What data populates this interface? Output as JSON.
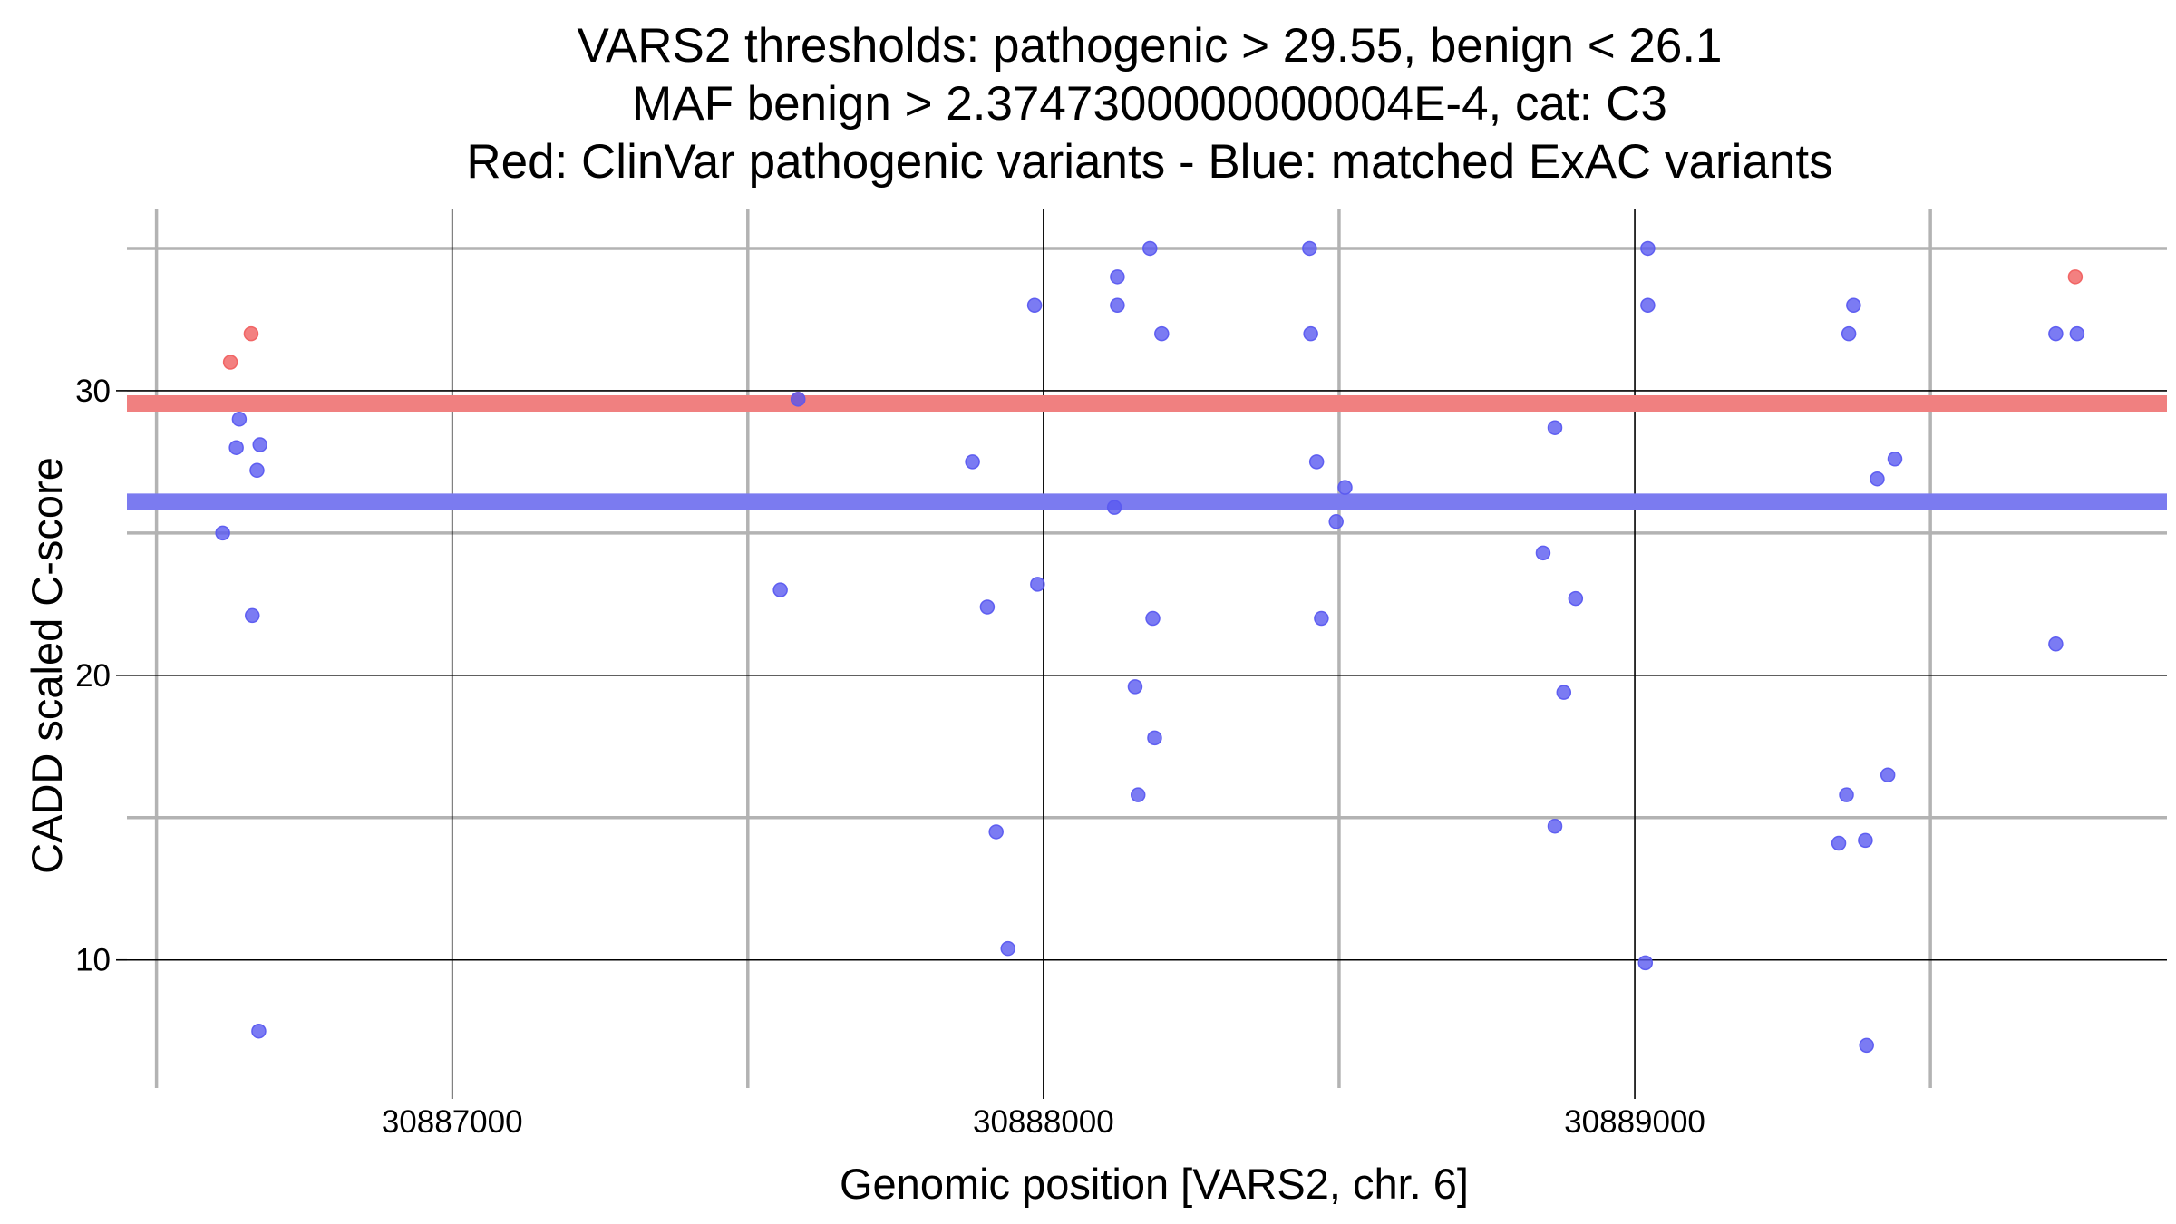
{
  "chart_data": {
    "type": "scatter",
    "title_lines": [
      "VARS2 thresholds: pathogenic > 29.55, benign < 26.1",
      "MAF benign > 2.3747300000000004E-4, cat: C3",
      "Red: ClinVar pathogenic variants - Blue: matched ExAC variants"
    ],
    "xlabel": "Genomic position [VARS2, chr. 6]",
    "ylabel": "CADD scaled C-score",
    "xlim": [
      30886450,
      30889900
    ],
    "ylim": [
      5.5,
      36.4
    ],
    "x_major_ticks": [
      30887000,
      30888000,
      30889000
    ],
    "x_tick_labels": [
      "30887000",
      "30888000",
      "30889000"
    ],
    "x_minor_ticks": [
      30886500,
      30887500,
      30888500,
      30889500
    ],
    "y_major_ticks": [
      10,
      20,
      30
    ],
    "y_tick_labels": [
      "10",
      "20",
      "30"
    ],
    "y_minor_ticks": [
      15,
      25,
      35
    ],
    "thresholds": [
      {
        "name": "pathogenic",
        "value": 29.55,
        "color": "#f08080"
      },
      {
        "name": "benign",
        "value": 26.1,
        "color": "#7b7bf0"
      }
    ],
    "colors": {
      "pathogenic_point": "#f06060",
      "benign_point": "#5a5af0",
      "major_grid": "#000000",
      "minor_grid": "#b3b3b3"
    },
    "series": [
      {
        "name": "ClinVar pathogenic",
        "color": "#f06060",
        "points": [
          [
            30886625,
            31.0
          ],
          [
            30886660,
            32.0
          ],
          [
            30887585,
            29.7
          ],
          [
            30889745,
            34.0
          ]
        ]
      },
      {
        "name": "matched ExAC",
        "color": "#5a5af0",
        "points": [
          [
            30886612,
            25.0
          ],
          [
            30886640,
            29.0
          ],
          [
            30886635,
            28.0
          ],
          [
            30886675,
            28.1
          ],
          [
            30886670,
            27.2
          ],
          [
            30886662,
            22.1
          ],
          [
            30886673,
            7.5
          ],
          [
            30887555,
            23.0
          ],
          [
            30887585,
            29.7
          ],
          [
            30887880,
            27.5
          ],
          [
            30887905,
            22.4
          ],
          [
            30887920,
            14.5
          ],
          [
            30887940,
            10.4
          ],
          [
            30887985,
            33.0
          ],
          [
            30887990,
            23.2
          ],
          [
            30888120,
            25.9
          ],
          [
            30888125,
            34.0
          ],
          [
            30888125,
            33.0
          ],
          [
            30888155,
            19.6
          ],
          [
            30888160,
            15.8
          ],
          [
            30888180,
            35.0
          ],
          [
            30888185,
            22.0
          ],
          [
            30888188,
            17.8
          ],
          [
            30888200,
            32.0
          ],
          [
            30888450,
            35.0
          ],
          [
            30888452,
            32.0
          ],
          [
            30888462,
            27.5
          ],
          [
            30888470,
            22.0
          ],
          [
            30888495,
            25.4
          ],
          [
            30888510,
            26.6
          ],
          [
            30888845,
            24.3
          ],
          [
            30888865,
            28.7
          ],
          [
            30888865,
            14.7
          ],
          [
            30888880,
            19.4
          ],
          [
            30888900,
            22.7
          ],
          [
            30889018,
            9.9
          ],
          [
            30889022,
            35.0
          ],
          [
            30889022,
            33.0
          ],
          [
            30889345,
            14.1
          ],
          [
            30889358,
            15.8
          ],
          [
            30889362,
            32.0
          ],
          [
            30889370,
            33.0
          ],
          [
            30889390,
            14.2
          ],
          [
            30889392,
            7.0
          ],
          [
            30889410,
            26.9
          ],
          [
            30889428,
            16.5
          ],
          [
            30889440,
            27.6
          ],
          [
            30889712,
            32.0
          ],
          [
            30889712,
            21.1
          ],
          [
            30889748,
            32.0
          ]
        ]
      }
    ]
  }
}
